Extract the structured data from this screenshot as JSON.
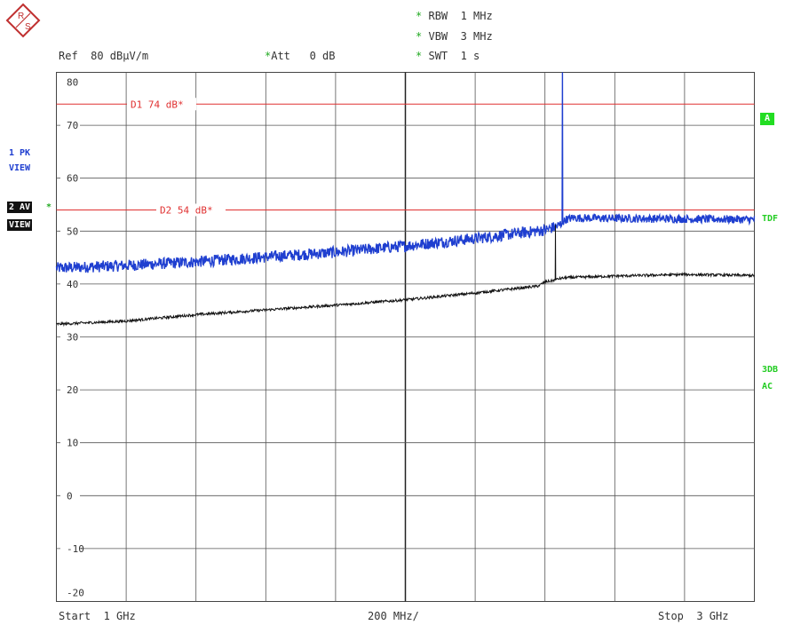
{
  "header": {
    "rbw": "RBW  1 MHz",
    "vbw": "VBW  3 MHz",
    "swt": "SWT  1 s",
    "ref": "Ref  80 dBµV/m",
    "att": "Att   0 dB",
    "star": "*"
  },
  "footer": {
    "start": "Start  1 GHz",
    "span": "200 MHz/",
    "stop": "Stop  3 GHz"
  },
  "left_labels": {
    "trace1_line1": "1 PK",
    "trace1_line2": "VIEW",
    "trace2_line1": "2 AV",
    "trace2_line2": "VIEW",
    "trace2_star": "*"
  },
  "right_labels": {
    "a_badge": "A",
    "tdf": "TDF",
    "db3": "3DB",
    "ac": "AC"
  },
  "colors": {
    "peak_trace": "#1f3fd0",
    "average_trace": "#111111",
    "display_lines": "#e03030",
    "grid": "#555555",
    "annotation_star": "#22aa22",
    "status_green": "#22cc22"
  },
  "chart_data": {
    "type": "line",
    "xlabel": "",
    "ylabel": "",
    "x_unit": "GHz",
    "xlim": [
      1,
      3
    ],
    "ylim": [
      -20,
      80
    ],
    "y_ticks": [
      80,
      70,
      60,
      50,
      40,
      30,
      20,
      10,
      0,
      -10,
      -20
    ],
    "grid": true,
    "display_lines": [
      {
        "label": "D1  74 dB*",
        "value": 74
      },
      {
        "label": "D2  54 dB*",
        "value": 54
      }
    ],
    "series": [
      {
        "label": "1 PK",
        "x": [
          1.0,
          1.2,
          1.4,
          1.6,
          1.8,
          2.0,
          2.2,
          2.4,
          2.42,
          2.44,
          2.45,
          2.46,
          2.48,
          2.6,
          2.8,
          3.0
        ],
        "y": [
          43,
          43.5,
          44.2,
          45.1,
          46.0,
          47.2,
          48.6,
          50.2,
          50.6,
          51.0,
          82,
          52.2,
          52.5,
          52.4,
          52.3,
          52.2
        ]
      },
      {
        "label": "2 AV",
        "x": [
          1.0,
          1.2,
          1.4,
          1.6,
          1.8,
          2.0,
          2.2,
          2.38,
          2.4,
          2.42,
          2.43,
          2.44,
          2.45,
          2.46,
          2.6,
          2.8,
          3.0
        ],
        "y": [
          32.4,
          33.0,
          34.2,
          35.1,
          36.0,
          37.0,
          38.3,
          39.6,
          40.4,
          40.6,
          51.2,
          41.0,
          41.1,
          41.2,
          41.5,
          41.8,
          41.6
        ]
      }
    ]
  }
}
